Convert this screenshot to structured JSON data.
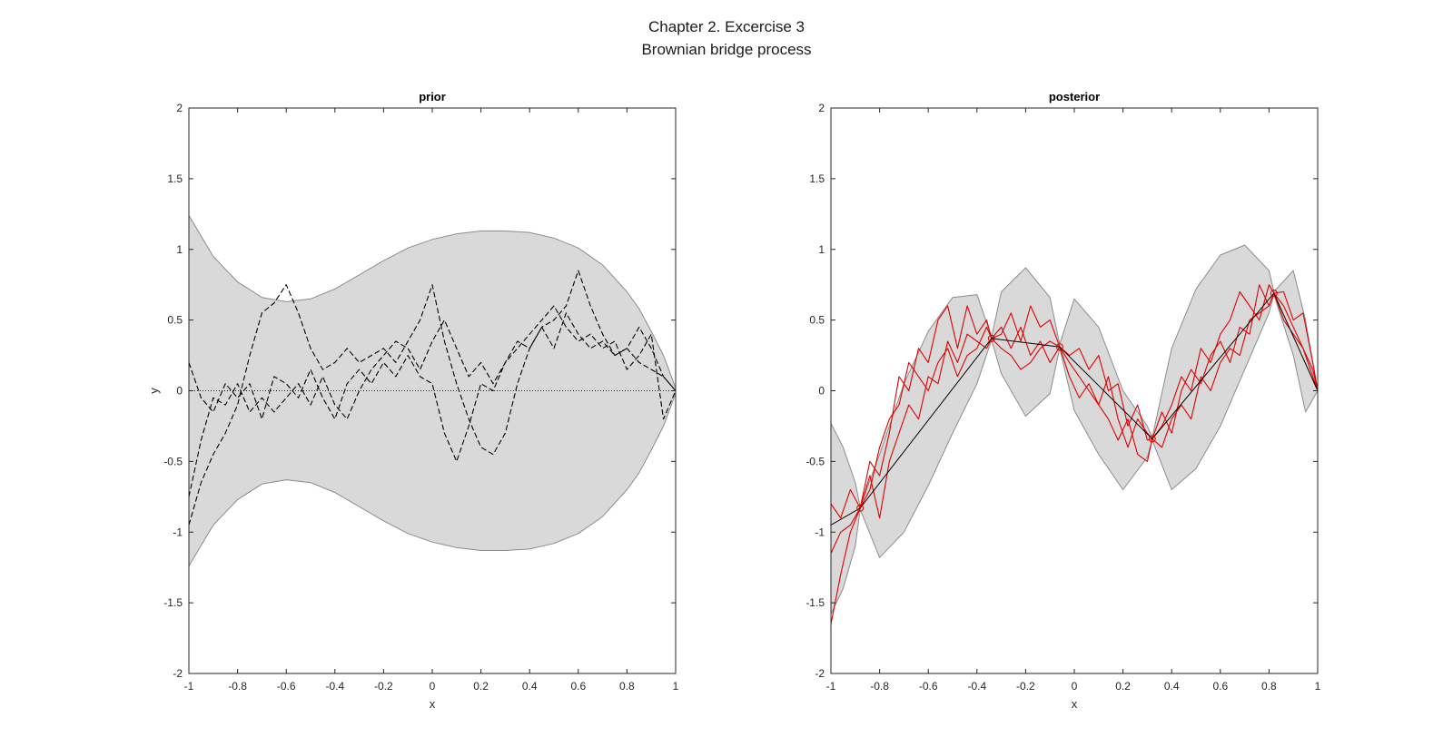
{
  "figure": {
    "title_line1": "Chapter 2. Excercise 3",
    "title_line2": "Brownian bridge process"
  },
  "colors": {
    "band_fill": "#d9d9d9",
    "band_edge": "#8c8c8c",
    "prior_sample": "#000000",
    "posterior_sample": "#e00000",
    "posterior_mean": "#000000"
  },
  "chart_data": [
    {
      "type": "area",
      "title": "prior",
      "xlabel": "x",
      "ylabel": "y",
      "xlim": [
        -1,
        1
      ],
      "ylim": [
        -2,
        2
      ],
      "xticks": [
        "-1",
        "-0.8",
        "-0.6",
        "-0.4",
        "-0.2",
        "0",
        "0.2",
        "0.4",
        "0.6",
        "0.8",
        "1"
      ],
      "yticks": [
        "-2",
        "-1.5",
        "-1",
        "-0.5",
        "0",
        "0.5",
        "1",
        "1.5",
        "2"
      ],
      "band": {
        "x": [
          -1,
          -0.9,
          -0.8,
          -0.7,
          -0.6,
          -0.5,
          -0.4,
          -0.3,
          -0.2,
          -0.1,
          0,
          0.1,
          0.2,
          0.3,
          0.4,
          0.5,
          0.6,
          0.7,
          0.8,
          0.85,
          0.9,
          0.95,
          1
        ],
        "upper": [
          1.24,
          0.95,
          0.77,
          0.66,
          0.63,
          0.65,
          0.72,
          0.82,
          0.92,
          1.01,
          1.07,
          1.11,
          1.13,
          1.13,
          1.12,
          1.08,
          1.01,
          0.89,
          0.7,
          0.58,
          0.42,
          0.25,
          0.02
        ],
        "lower": [
          -1.24,
          -0.95,
          -0.77,
          -0.66,
          -0.63,
          -0.65,
          -0.72,
          -0.82,
          -0.92,
          -1.01,
          -1.07,
          -1.11,
          -1.13,
          -1.13,
          -1.12,
          -1.08,
          -1.01,
          -0.89,
          -0.7,
          -0.58,
          -0.42,
          -0.25,
          -0.02
        ]
      },
      "mean": {
        "x": [
          -1,
          1
        ],
        "y": [
          0,
          0
        ]
      },
      "samples": [
        {
          "x": [
            -1,
            -0.95,
            -0.9,
            -0.85,
            -0.8,
            -0.75,
            -0.7,
            -0.65,
            -0.6,
            -0.55,
            -0.5,
            -0.45,
            -0.4,
            -0.35,
            -0.3,
            -0.25,
            -0.2,
            -0.15,
            -0.1,
            -0.05,
            0,
            0.05,
            0.1,
            0.15,
            0.2,
            0.25,
            0.3,
            0.35,
            0.4,
            0.45,
            0.5,
            0.55,
            0.6,
            0.65,
            0.7,
            0.75,
            0.8,
            0.85,
            0.9,
            0.95,
            1
          ],
          "y": [
            -0.95,
            -0.65,
            -0.45,
            -0.3,
            -0.1,
            0.25,
            0.55,
            0.62,
            0.75,
            0.55,
            0.3,
            0.15,
            0.2,
            0.3,
            0.2,
            0.25,
            0.3,
            0.2,
            0.35,
            0.5,
            0.75,
            0.35,
            0.05,
            -0.2,
            -0.4,
            -0.45,
            -0.3,
            0.05,
            0.3,
            0.45,
            0.5,
            0.6,
            0.85,
            0.6,
            0.4,
            0.25,
            0.3,
            0.2,
            0.15,
            0.1,
            0
          ]
        },
        {
          "x": [
            -1,
            -0.95,
            -0.9,
            -0.85,
            -0.8,
            -0.75,
            -0.7,
            -0.65,
            -0.6,
            -0.55,
            -0.5,
            -0.45,
            -0.4,
            -0.35,
            -0.3,
            -0.25,
            -0.2,
            -0.15,
            -0.1,
            -0.05,
            0,
            0.05,
            0.1,
            0.15,
            0.2,
            0.25,
            0.3,
            0.35,
            0.4,
            0.45,
            0.5,
            0.55,
            0.6,
            0.65,
            0.7,
            0.75,
            0.8,
            0.85,
            0.9,
            0.95,
            1
          ],
          "y": [
            0.2,
            -0.05,
            -0.15,
            0.05,
            -0.05,
            0.05,
            -0.2,
            0.1,
            0.05,
            -0.05,
            0.15,
            -0.05,
            -0.2,
            0.05,
            0.15,
            0.05,
            0.2,
            0.1,
            0.25,
            0.1,
            0.05,
            -0.3,
            -0.5,
            -0.25,
            0.05,
            0.0,
            0.2,
            0.35,
            0.3,
            0.45,
            0.3,
            0.55,
            0.4,
            0.3,
            0.35,
            0.25,
            0.3,
            0.45,
            0.3,
            0.1,
            0
          ]
        },
        {
          "x": [
            -1,
            -0.95,
            -0.9,
            -0.85,
            -0.8,
            -0.75,
            -0.7,
            -0.65,
            -0.6,
            -0.55,
            -0.5,
            -0.45,
            -0.4,
            -0.35,
            -0.3,
            -0.25,
            -0.2,
            -0.15,
            -0.1,
            -0.05,
            0,
            0.05,
            0.1,
            0.15,
            0.2,
            0.25,
            0.3,
            0.35,
            0.4,
            0.45,
            0.5,
            0.55,
            0.6,
            0.65,
            0.7,
            0.75,
            0.8,
            0.85,
            0.9,
            0.95,
            1
          ],
          "y": [
            -0.75,
            -0.35,
            -0.05,
            -0.1,
            0.05,
            -0.15,
            -0.05,
            -0.15,
            -0.05,
            0.05,
            -0.1,
            0.1,
            -0.1,
            -0.2,
            0.0,
            0.15,
            0.25,
            0.35,
            0.3,
            0.15,
            0.35,
            0.5,
            0.3,
            0.1,
            0.2,
            0.05,
            0.2,
            0.3,
            0.4,
            0.5,
            0.6,
            0.45,
            0.35,
            0.4,
            0.3,
            0.35,
            0.15,
            0.25,
            0.4,
            -0.2,
            0
          ]
        }
      ]
    },
    {
      "type": "area",
      "title": "posterior",
      "xlabel": "x",
      "ylabel": "",
      "xlim": [
        -1,
        1
      ],
      "ylim": [
        -2,
        2
      ],
      "xticks": [
        "-1",
        "-0.8",
        "-0.6",
        "-0.4",
        "-0.2",
        "0",
        "0.2",
        "0.4",
        "0.6",
        "0.8",
        "1"
      ],
      "yticks": [
        "-2",
        "-1.5",
        "-1",
        "-0.5",
        "0",
        "0.5",
        "1",
        "1.5",
        "2"
      ],
      "band": {
        "x": [
          -1,
          -0.95,
          -0.9,
          -0.88,
          -0.8,
          -0.7,
          -0.6,
          -0.5,
          -0.4,
          -0.34,
          -0.3,
          -0.2,
          -0.1,
          -0.06,
          0,
          0.1,
          0.2,
          0.3,
          0.32,
          0.4,
          0.5,
          0.6,
          0.7,
          0.8,
          0.82,
          0.9,
          0.95,
          1
        ],
        "upper": [
          -0.23,
          -0.4,
          -0.65,
          -0.82,
          -0.45,
          0.05,
          0.42,
          0.66,
          0.68,
          0.38,
          0.7,
          0.87,
          0.66,
          0.33,
          0.65,
          0.45,
          0.0,
          -0.25,
          -0.33,
          0.3,
          0.72,
          0.96,
          1.03,
          0.85,
          0.7,
          0.85,
          0.5,
          0.0
        ],
        "lower": [
          -1.58,
          -1.4,
          -1.1,
          -0.84,
          -1.18,
          -1.0,
          -0.67,
          -0.3,
          0.05,
          0.36,
          0.12,
          -0.18,
          -0.02,
          0.3,
          -0.14,
          -0.45,
          -0.7,
          -0.47,
          -0.35,
          -0.7,
          -0.55,
          -0.25,
          0.15,
          0.55,
          0.68,
          0.25,
          -0.15,
          0.0
        ]
      },
      "mean": {
        "x": [
          -1,
          -0.88,
          -0.34,
          -0.06,
          0.32,
          0.82,
          1
        ],
        "y": [
          -0.95,
          -0.83,
          0.37,
          0.31,
          -0.34,
          0.69,
          0.0
        ]
      },
      "observations": {
        "x": [
          -0.88,
          -0.34,
          -0.06,
          0.32,
          0.82
        ],
        "y": [
          -0.83,
          0.37,
          0.31,
          -0.34,
          0.69
        ]
      },
      "samples": [
        {
          "x": [
            -1,
            -0.96,
            -0.92,
            -0.88,
            -0.84,
            -0.8,
            -0.76,
            -0.72,
            -0.68,
            -0.64,
            -0.6,
            -0.56,
            -0.52,
            -0.48,
            -0.44,
            -0.4,
            -0.36,
            -0.34,
            -0.3,
            -0.26,
            -0.22,
            -0.18,
            -0.14,
            -0.1,
            -0.06,
            -0.02,
            0.02,
            0.06,
            0.1,
            0.14,
            0.18,
            0.22,
            0.26,
            0.3,
            0.32,
            0.36,
            0.4,
            0.44,
            0.48,
            0.52,
            0.56,
            0.6,
            0.64,
            0.68,
            0.72,
            0.76,
            0.8,
            0.82,
            0.86,
            0.9,
            0.94,
            0.98,
            1
          ],
          "y": [
            -1.65,
            -1.3,
            -1.0,
            -0.83,
            -0.5,
            -0.6,
            -0.3,
            0.1,
            0.0,
            0.3,
            0.2,
            0.5,
            0.6,
            0.3,
            0.6,
            0.4,
            0.5,
            0.37,
            0.4,
            0.55,
            0.35,
            0.6,
            0.45,
            0.5,
            0.31,
            0.2,
            0.1,
            0.0,
            -0.1,
            0.1,
            -0.2,
            -0.4,
            -0.2,
            -0.3,
            -0.34,
            -0.25,
            -0.1,
            0.1,
            0.0,
            0.3,
            0.2,
            0.4,
            0.5,
            0.7,
            0.6,
            0.5,
            0.75,
            0.69,
            0.5,
            0.4,
            0.3,
            0.1,
            0
          ]
        },
        {
          "x": [
            -1,
            -0.96,
            -0.92,
            -0.88,
            -0.84,
            -0.8,
            -0.76,
            -0.72,
            -0.68,
            -0.64,
            -0.6,
            -0.56,
            -0.52,
            -0.48,
            -0.44,
            -0.4,
            -0.36,
            -0.34,
            -0.3,
            -0.26,
            -0.22,
            -0.18,
            -0.14,
            -0.1,
            -0.06,
            -0.02,
            0.02,
            0.06,
            0.1,
            0.14,
            0.18,
            0.22,
            0.26,
            0.3,
            0.32,
            0.36,
            0.4,
            0.44,
            0.48,
            0.52,
            0.56,
            0.6,
            0.64,
            0.68,
            0.72,
            0.76,
            0.8,
            0.82,
            0.86,
            0.9,
            0.94,
            0.98,
            1
          ],
          "y": [
            -1.15,
            -1.0,
            -0.95,
            -0.83,
            -0.7,
            -0.4,
            -0.2,
            -0.1,
            0.2,
            0.1,
            0.0,
            0.2,
            0.3,
            0.1,
            0.25,
            0.3,
            0.45,
            0.37,
            0.3,
            0.25,
            0.15,
            0.2,
            0.3,
            0.35,
            0.31,
            0.1,
            -0.05,
            0.05,
            -0.1,
            -0.2,
            -0.35,
            -0.2,
            -0.45,
            -0.5,
            -0.34,
            -0.4,
            -0.2,
            -0.1,
            -0.2,
            0.1,
            0.0,
            0.2,
            0.3,
            0.25,
            0.5,
            0.55,
            0.6,
            0.69,
            0.6,
            0.45,
            0.3,
            0.15,
            0
          ]
        },
        {
          "x": [
            -1,
            -0.96,
            -0.92,
            -0.88,
            -0.84,
            -0.8,
            -0.76,
            -0.72,
            -0.68,
            -0.64,
            -0.6,
            -0.56,
            -0.52,
            -0.48,
            -0.44,
            -0.4,
            -0.36,
            -0.34,
            -0.3,
            -0.26,
            -0.22,
            -0.18,
            -0.14,
            -0.1,
            -0.06,
            -0.02,
            0.02,
            0.06,
            0.1,
            0.14,
            0.18,
            0.22,
            0.26,
            0.3,
            0.32,
            0.36,
            0.4,
            0.44,
            0.48,
            0.52,
            0.56,
            0.6,
            0.64,
            0.68,
            0.72,
            0.76,
            0.8,
            0.82,
            0.86,
            0.9,
            0.94,
            0.98,
            1
          ],
          "y": [
            -0.8,
            -0.9,
            -0.7,
            -0.83,
            -0.6,
            -0.9,
            -0.5,
            -0.3,
            -0.1,
            -0.2,
            0.1,
            0.05,
            0.35,
            0.2,
            0.4,
            0.35,
            0.3,
            0.37,
            0.45,
            0.3,
            0.45,
            0.25,
            0.35,
            0.2,
            0.31,
            0.25,
            0.3,
            0.15,
            0.25,
            0.0,
            0.05,
            -0.25,
            -0.1,
            -0.35,
            -0.34,
            -0.15,
            -0.3,
            0.0,
            0.15,
            0.05,
            0.25,
            0.35,
            0.2,
            0.45,
            0.4,
            0.75,
            0.6,
            0.69,
            0.7,
            0.5,
            0.55,
            0.2,
            0
          ]
        }
      ]
    }
  ]
}
